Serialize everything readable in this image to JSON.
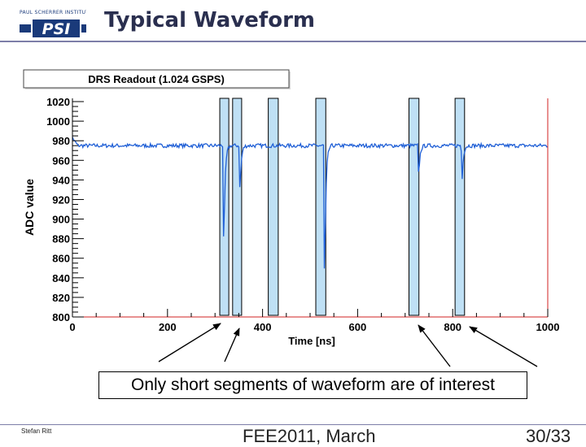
{
  "slide": {
    "title": "Typical Waveform",
    "logo_top_text": "PAUL SCHERRER INSTITUT",
    "logo_text": "PSI",
    "callout": "Only short segments of waveform are of interest",
    "footer_author": "Stefan Ritt",
    "footer_center": "FEE2011, March",
    "footer_page": "30/33"
  },
  "colors": {
    "waveform": "#1f5fd6",
    "segment_fill": "#bfe0f5",
    "axis_red": "#d02020",
    "title_rule": "#7d7ea8",
    "title_text": "#2a2f4f"
  },
  "chart_data": {
    "type": "line",
    "title": "DRS Readout (1.024 GSPS)",
    "xlabel": "Time [ns]",
    "ylabel": "ADC value",
    "xlim": [
      0,
      1000
    ],
    "ylim": [
      800,
      1020
    ],
    "x_ticks": [
      0,
      200,
      400,
      600,
      800,
      1000
    ],
    "y_ticks": [
      800,
      820,
      840,
      860,
      880,
      900,
      920,
      940,
      960,
      980,
      1000,
      1020
    ],
    "baseline": 975,
    "baseline_start": 983,
    "pulses": [
      {
        "time": 318,
        "min": 883
      },
      {
        "time": 352,
        "min": 932
      },
      {
        "time": 530,
        "min": 849
      },
      {
        "time": 728,
        "min": 947
      },
      {
        "time": 819,
        "min": 941
      }
    ],
    "highlight_segments": [
      {
        "start": 310,
        "end": 329
      },
      {
        "start": 337,
        "end": 356
      },
      {
        "start": 412,
        "end": 433
      },
      {
        "start": 512,
        "end": 533
      },
      {
        "start": 708,
        "end": 729
      },
      {
        "start": 805,
        "end": 825
      }
    ],
    "annotation_arrows": 6,
    "grid": false,
    "legend": "none"
  }
}
